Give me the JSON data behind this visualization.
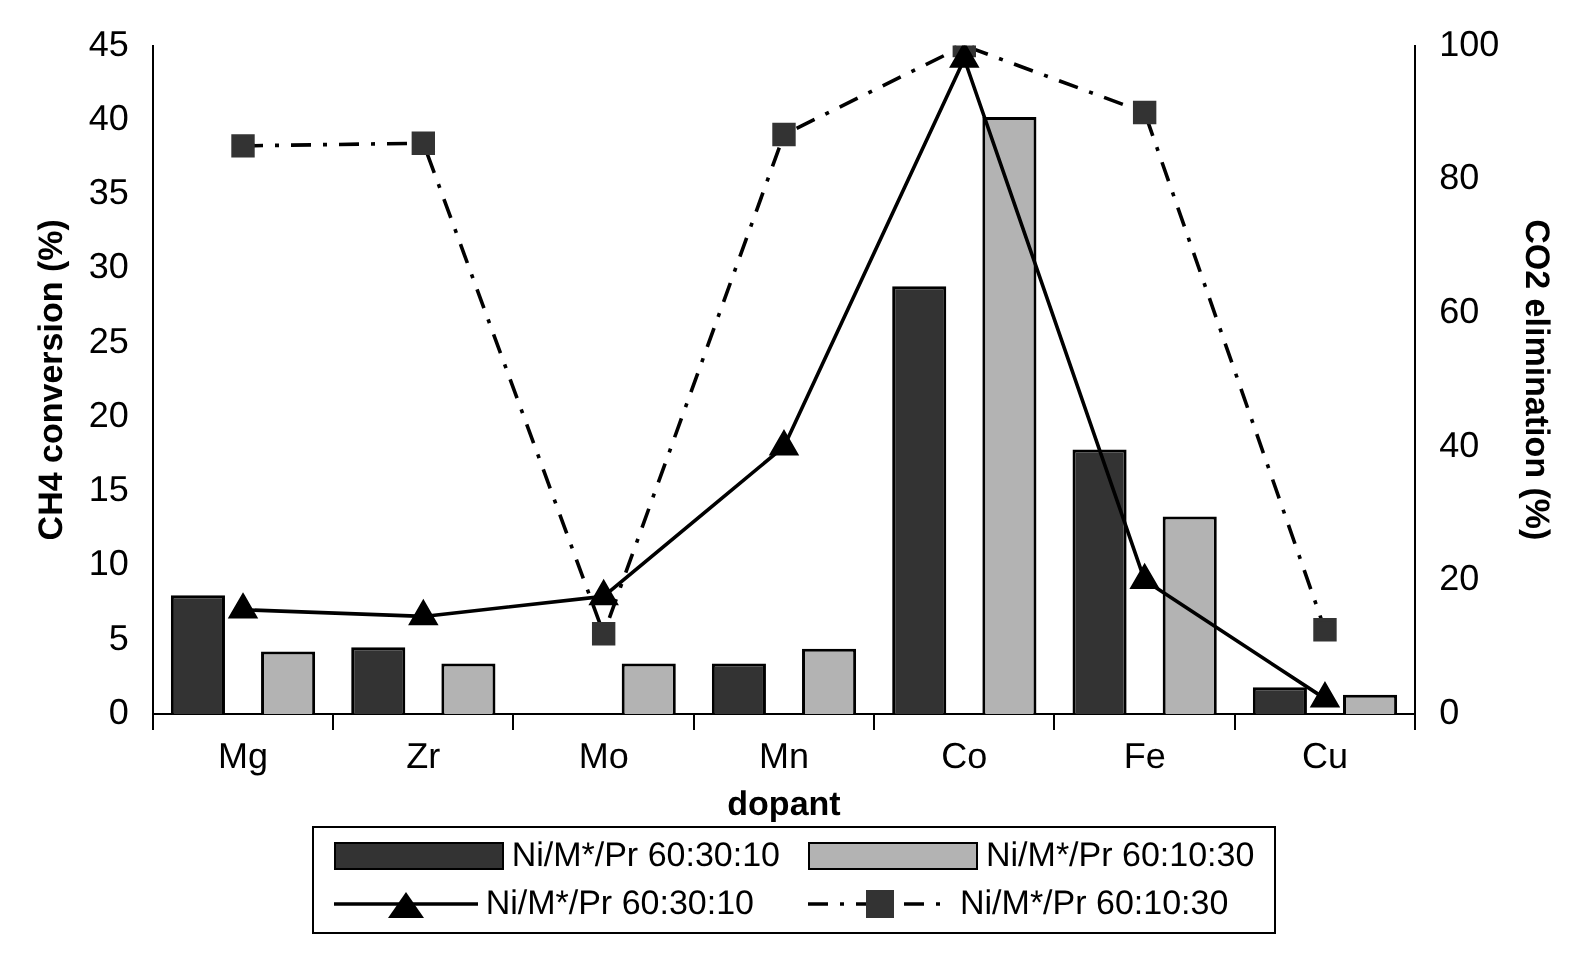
{
  "chart_data": {
    "type": "bar",
    "xlabel": "dopant",
    "ylabel": "CH4 conversion (%)",
    "y2label": "CO2 elimination (%)",
    "categories": [
      "Mg",
      "Zr",
      "Mo",
      "Mn",
      "Co",
      "Fe",
      "Cu"
    ],
    "series": [
      {
        "name": "Ni/M*/Pr 60:30:10",
        "color": "#333333",
        "values": [
          8.0,
          4.5,
          0,
          3.4,
          28.8,
          17.8,
          1.8
        ]
      },
      {
        "name": "Ni/M*/Pr 60:10:30",
        "color": "#b3b3b3",
        "values": [
          4.2,
          3.4,
          3.4,
          4.4,
          40.2,
          13.3,
          1.3
        ]
      },
      {
        "name": "Ni/M*/Pr 60:30:10",
        "type": "line",
        "axis": "y2",
        "color": "#000000",
        "marker": "triangle",
        "line_style": "solid",
        "values": [
          15.6,
          14.6,
          17.6,
          40,
          98,
          20,
          2.3
        ]
      },
      {
        "name": "Ni/M*/Pr 60:10:30",
        "type": "line",
        "axis": "y2",
        "color": "#333333",
        "marker": "square",
        "line_style": "dashed",
        "values": [
          85,
          85.4,
          12,
          86.7,
          100,
          90,
          12.6
        ]
      }
    ],
    "ylim": [
      0,
      45
    ],
    "yticks": [
      0,
      5,
      10,
      15,
      20,
      25,
      30,
      35,
      40,
      45
    ],
    "y2lim": [
      0,
      100
    ],
    "y2ticks": [
      0,
      20,
      40,
      60,
      80,
      100
    ],
    "grid": false,
    "legend": "bottom"
  }
}
